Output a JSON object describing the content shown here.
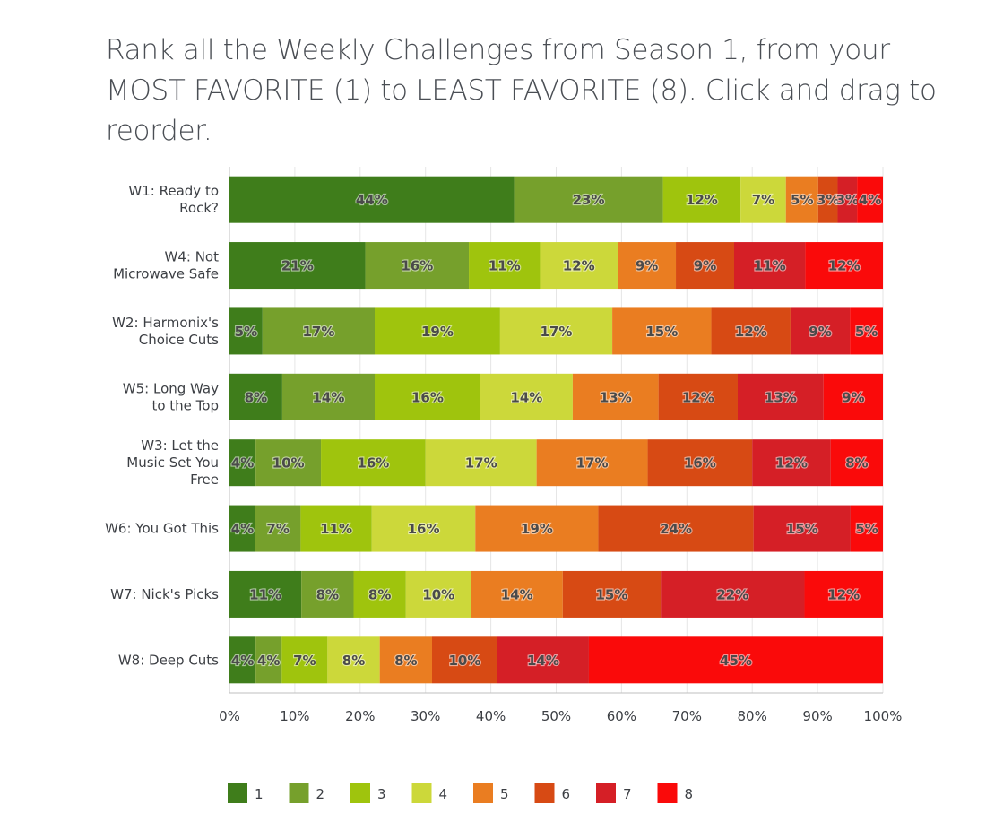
{
  "title": "Rank all the Weekly Challenges from Season 1, from your MOST FAVORITE (1) to LEAST FAVORITE (8). Click and drag to reorder.",
  "chart_data": {
    "type": "bar",
    "orientation": "horizontal",
    "stacked": true,
    "normalized_percent": true,
    "title": "Rank all the Weekly Challenges from Season 1, from your MOST FAVORITE (1) to LEAST FAVORITE (8). Click and drag to reorder.",
    "categories": [
      [
        "W1: Ready to",
        "Rock?"
      ],
      [
        "W4: Not",
        "Microwave Safe"
      ],
      [
        "W2: Harmonix's",
        "Choice Cuts"
      ],
      [
        "W5: Long Way",
        "to the Top"
      ],
      [
        "W3: Let the",
        "Music Set You",
        "Free"
      ],
      [
        "W6: You Got This"
      ],
      [
        "W7: Nick's Picks"
      ],
      [
        "W8: Deep Cuts"
      ]
    ],
    "series": [
      {
        "name": "1",
        "color": "#3f7d1b",
        "values": [
          44,
          21,
          5,
          8,
          4,
          4,
          11,
          4
        ]
      },
      {
        "name": "2",
        "color": "#76a02c",
        "values": [
          23,
          16,
          17,
          14,
          10,
          7,
          8,
          4
        ]
      },
      {
        "name": "3",
        "color": "#9fc40d",
        "values": [
          12,
          11,
          19,
          16,
          16,
          11,
          8,
          7
        ]
      },
      {
        "name": "4",
        "color": "#ccd83a",
        "values": [
          7,
          12,
          17,
          14,
          17,
          16,
          10,
          8
        ]
      },
      {
        "name": "5",
        "color": "#ea7d21",
        "values": [
          5,
          9,
          15,
          13,
          17,
          19,
          14,
          8
        ]
      },
      {
        "name": "6",
        "color": "#d74a14",
        "values": [
          3,
          9,
          12,
          12,
          16,
          24,
          15,
          10
        ]
      },
      {
        "name": "7",
        "color": "#d51f26",
        "values": [
          3,
          11,
          9,
          13,
          12,
          15,
          22,
          14
        ]
      },
      {
        "name": "8",
        "color": "#fa0a0a",
        "values": [
          4,
          12,
          5,
          9,
          8,
          5,
          12,
          45
        ]
      }
    ],
    "xlim": [
      0,
      100
    ],
    "xticks": [
      "0%",
      "10%",
      "20%",
      "30%",
      "40%",
      "50%",
      "60%",
      "70%",
      "80%",
      "90%",
      "100%"
    ],
    "grid": true,
    "legend_position": "bottom"
  }
}
